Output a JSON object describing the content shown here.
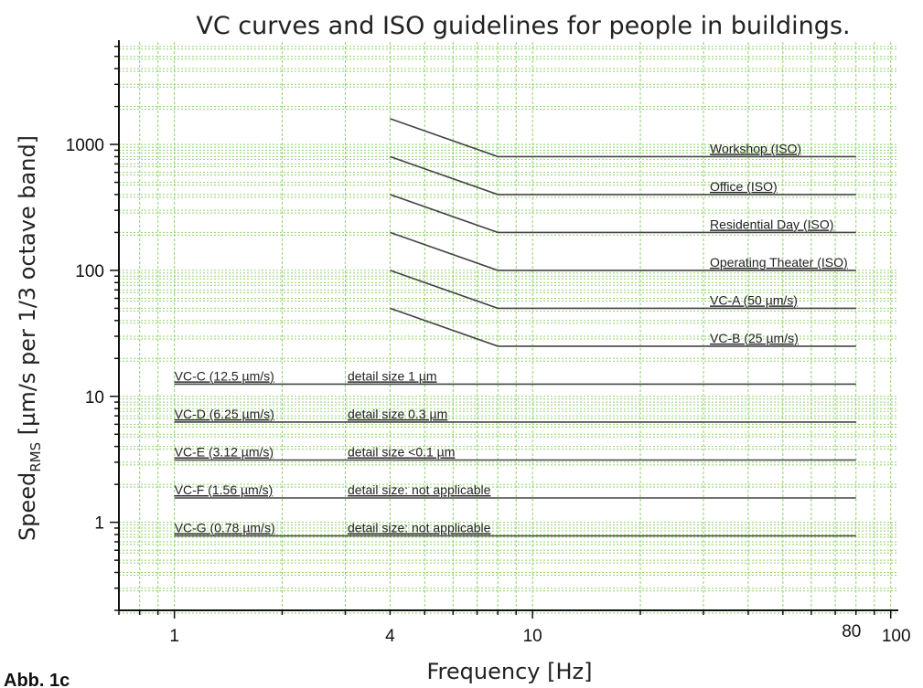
{
  "chart_data": {
    "type": "line",
    "title": "VC curves and ISO guidelines for people in buildings.",
    "xlabel": "Frequency [Hz]",
    "ylabel_main": "Speed",
    "ylabel_sub": "RMS",
    "ylabel_rest": " [µm/s per 1/3 octave band]",
    "x_scale": "log",
    "y_scale": "log",
    "xlim": [
      0.7,
      105
    ],
    "ylim": [
      0.2,
      6500
    ],
    "grid": true,
    "grid_color": "#8fd16a",
    "line_color": "#444444",
    "x_ticks": [
      {
        "value": 1,
        "label": "1"
      },
      {
        "value": 4,
        "label": "4"
      },
      {
        "value": 10,
        "label": "10"
      },
      {
        "value": 80,
        "label": "80"
      },
      {
        "value": 100,
        "label": "100"
      }
    ],
    "y_ticks": [
      {
        "value": 1,
        "label": "1"
      },
      {
        "value": 10,
        "label": "10"
      },
      {
        "value": 100,
        "label": "100"
      },
      {
        "value": 1000,
        "label": "1000"
      }
    ],
    "series": [
      {
        "name": "Workshop (ISO)",
        "points": [
          [
            4,
            1600
          ],
          [
            8,
            800
          ],
          [
            80,
            800
          ]
        ]
      },
      {
        "name": "Office (ISO)",
        "points": [
          [
            4,
            800
          ],
          [
            8,
            400
          ],
          [
            80,
            400
          ]
        ]
      },
      {
        "name": "Residential Day (ISO)",
        "points": [
          [
            4,
            400
          ],
          [
            8,
            200
          ],
          [
            80,
            200
          ]
        ]
      },
      {
        "name": "Operating Theater (ISO)",
        "points": [
          [
            4,
            200
          ],
          [
            8,
            100
          ],
          [
            80,
            100
          ]
        ]
      },
      {
        "name": "VC-A (50 µm/s)",
        "points": [
          [
            4,
            100
          ],
          [
            8,
            50
          ],
          [
            80,
            50
          ]
        ]
      },
      {
        "name": "VC-B (25 µm/s)",
        "points": [
          [
            4,
            50
          ],
          [
            8,
            25
          ],
          [
            80,
            25
          ]
        ]
      },
      {
        "name": "VC-C (12.5 µm/s)",
        "detail": "detail size 1 µm",
        "points": [
          [
            1,
            12.5
          ],
          [
            80,
            12.5
          ]
        ]
      },
      {
        "name": "VC-D (6.25 µm/s)",
        "detail": "detail size 0.3 µm",
        "points": [
          [
            1,
            6.25
          ],
          [
            80,
            6.25
          ]
        ]
      },
      {
        "name": "VC-E (3.12 µm/s)",
        "detail": "detail size <0.1 µm",
        "points": [
          [
            1,
            3.12
          ],
          [
            80,
            3.12
          ]
        ]
      },
      {
        "name": "VC-F (1.56 µm/s)",
        "detail": "detail size: not applicable",
        "points": [
          [
            1,
            1.56
          ],
          [
            80,
            1.56
          ]
        ]
      },
      {
        "name": "VC-G (0.78 µm/s)",
        "detail": "detail size: not applicable",
        "points": [
          [
            1,
            0.78
          ],
          [
            80,
            0.78
          ]
        ]
      }
    ]
  },
  "caption": "Abb. 1c"
}
